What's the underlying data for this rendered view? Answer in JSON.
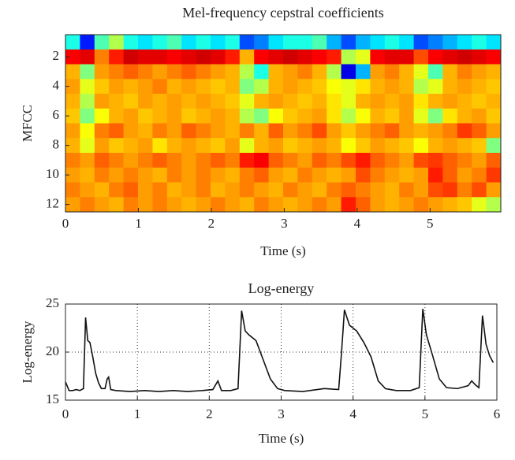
{
  "chart_data": [
    {
      "type": "heatmap",
      "title": "Mel-frequency cepstral coefficients",
      "x_label": "Time (s)",
      "y_label": "MFCC",
      "colormap": "jet",
      "xlim": [
        0,
        5.97
      ],
      "ylim": [
        0.5,
        12.5
      ],
      "xticks": [
        0,
        1,
        2,
        3,
        4,
        5
      ],
      "yticks": [
        2,
        4,
        6,
        8,
        10,
        12
      ],
      "z": [
        [
          0.4,
          0.15,
          0.45,
          0.55,
          0.4,
          0.35,
          0.4,
          0.45,
          0.35,
          0.4,
          0.35,
          0.4,
          0.2,
          0.25,
          0.35,
          0.4,
          0.4,
          0.45,
          0.3,
          0.2,
          0.3,
          0.35,
          0.4,
          0.35,
          0.2,
          0.25,
          0.3,
          0.35,
          0.4,
          0.35
        ],
        [
          0.88,
          0.9,
          0.75,
          0.85,
          0.92,
          0.9,
          0.9,
          0.88,
          0.9,
          0.92,
          0.9,
          0.85,
          0.7,
          0.88,
          0.9,
          0.92,
          0.9,
          0.88,
          0.85,
          0.55,
          0.6,
          0.88,
          0.9,
          0.9,
          0.8,
          0.88,
          0.9,
          0.92,
          0.9,
          0.88
        ],
        [
          0.7,
          0.5,
          0.72,
          0.75,
          0.78,
          0.75,
          0.72,
          0.75,
          0.78,
          0.75,
          0.72,
          0.7,
          0.55,
          0.4,
          0.7,
          0.72,
          0.75,
          0.7,
          0.55,
          0.1,
          0.3,
          0.72,
          0.75,
          0.7,
          0.6,
          0.45,
          0.7,
          0.75,
          0.72,
          0.7
        ],
        [
          0.72,
          0.6,
          0.68,
          0.72,
          0.7,
          0.72,
          0.75,
          0.7,
          0.72,
          0.7,
          0.68,
          0.7,
          0.5,
          0.55,
          0.7,
          0.72,
          0.7,
          0.68,
          0.62,
          0.6,
          0.65,
          0.7,
          0.72,
          0.7,
          0.55,
          0.6,
          0.7,
          0.72,
          0.7,
          0.68
        ],
        [
          0.7,
          0.55,
          0.72,
          0.7,
          0.68,
          0.72,
          0.7,
          0.72,
          0.7,
          0.72,
          0.7,
          0.68,
          0.6,
          0.7,
          0.72,
          0.7,
          0.68,
          0.7,
          0.65,
          0.6,
          0.7,
          0.72,
          0.7,
          0.72,
          0.65,
          0.7,
          0.72,
          0.7,
          0.68,
          0.7
        ],
        [
          0.68,
          0.5,
          0.62,
          0.7,
          0.72,
          0.68,
          0.7,
          0.72,
          0.68,
          0.7,
          0.72,
          0.7,
          0.55,
          0.5,
          0.62,
          0.68,
          0.7,
          0.72,
          0.65,
          0.55,
          0.62,
          0.7,
          0.68,
          0.72,
          0.6,
          0.5,
          0.65,
          0.7,
          0.72,
          0.68
        ],
        [
          0.72,
          0.62,
          0.75,
          0.78,
          0.72,
          0.7,
          0.75,
          0.72,
          0.78,
          0.75,
          0.72,
          0.7,
          0.75,
          0.7,
          0.78,
          0.72,
          0.75,
          0.8,
          0.72,
          0.68,
          0.72,
          0.75,
          0.78,
          0.72,
          0.7,
          0.72,
          0.75,
          0.82,
          0.78,
          0.72
        ],
        [
          0.7,
          0.6,
          0.72,
          0.68,
          0.7,
          0.72,
          0.65,
          0.7,
          0.72,
          0.7,
          0.68,
          0.72,
          0.6,
          0.7,
          0.72,
          0.68,
          0.7,
          0.72,
          0.7,
          0.62,
          0.68,
          0.72,
          0.7,
          0.68,
          0.62,
          0.7,
          0.72,
          0.7,
          0.68,
          0.5
        ],
        [
          0.75,
          0.72,
          0.78,
          0.75,
          0.72,
          0.75,
          0.78,
          0.75,
          0.72,
          0.75,
          0.78,
          0.75,
          0.85,
          0.88,
          0.78,
          0.75,
          0.72,
          0.78,
          0.75,
          0.8,
          0.85,
          0.78,
          0.75,
          0.72,
          0.8,
          0.82,
          0.78,
          0.75,
          0.72,
          0.78
        ],
        [
          0.72,
          0.7,
          0.75,
          0.72,
          0.75,
          0.72,
          0.7,
          0.75,
          0.72,
          0.75,
          0.72,
          0.7,
          0.75,
          0.78,
          0.72,
          0.7,
          0.75,
          0.72,
          0.7,
          0.72,
          0.8,
          0.75,
          0.72,
          0.7,
          0.72,
          0.85,
          0.78,
          0.72,
          0.75,
          0.82
        ],
        [
          0.75,
          0.72,
          0.7,
          0.75,
          0.78,
          0.72,
          0.75,
          0.7,
          0.72,
          0.75,
          0.7,
          0.72,
          0.75,
          0.72,
          0.7,
          0.75,
          0.72,
          0.7,
          0.75,
          0.78,
          0.75,
          0.72,
          0.7,
          0.75,
          0.72,
          0.8,
          0.82,
          0.75,
          0.8,
          0.72
        ],
        [
          0.72,
          0.75,
          0.72,
          0.7,
          0.75,
          0.72,
          0.75,
          0.72,
          0.7,
          0.72,
          0.75,
          0.72,
          0.7,
          0.75,
          0.72,
          0.7,
          0.72,
          0.75,
          0.72,
          0.85,
          0.78,
          0.72,
          0.7,
          0.72,
          0.75,
          0.72,
          0.7,
          0.68,
          0.6,
          0.55
        ]
      ]
    },
    {
      "type": "line",
      "title": "Log-energy",
      "x_label": "Time (s)",
      "y_label": "Log-energy",
      "xlim": [
        0,
        6
      ],
      "ylim": [
        15,
        25
      ],
      "xticks": [
        0,
        1,
        2,
        3,
        4,
        5,
        6
      ],
      "yticks": [
        15,
        20,
        25
      ],
      "grid": true,
      "color": "#111111",
      "x": [
        0,
        0.05,
        0.1,
        0.15,
        0.2,
        0.25,
        0.28,
        0.31,
        0.34,
        0.38,
        0.42,
        0.46,
        0.5,
        0.55,
        0.58,
        0.6,
        0.63,
        0.7,
        0.9,
        1.1,
        1.3,
        1.5,
        1.7,
        1.9,
        2.05,
        2.12,
        2.17,
        2.3,
        2.4,
        2.45,
        2.5,
        2.55,
        2.65,
        2.75,
        2.85,
        2.95,
        3.05,
        3.3,
        3.6,
        3.8,
        3.84,
        3.88,
        3.95,
        4.05,
        4.15,
        4.25,
        4.35,
        4.45,
        4.6,
        4.8,
        4.92,
        4.97,
        5.02,
        5.1,
        5.2,
        5.3,
        5.45,
        5.6,
        5.65,
        5.7,
        5.75,
        5.8,
        5.85,
        5.9,
        5.95
      ],
      "values": [
        16.9,
        16,
        16,
        16.1,
        16,
        16.2,
        23.6,
        21.2,
        21,
        19.5,
        17.8,
        16.8,
        16.2,
        16.2,
        17.2,
        17.4,
        16.1,
        16,
        15.9,
        16,
        15.9,
        16,
        15.9,
        16,
        16.1,
        17,
        16,
        16,
        16.2,
        24.3,
        22.2,
        21.8,
        21.2,
        19.2,
        17.2,
        16.2,
        16,
        15.9,
        16.2,
        16.1,
        20,
        24.4,
        22.8,
        22.2,
        21,
        19.5,
        17,
        16.2,
        16,
        16,
        16.3,
        24.5,
        21.8,
        19.8,
        17.2,
        16.3,
        16.2,
        16.5,
        17,
        16.6,
        16.3,
        23.8,
        20.8,
        19.6,
        18.9
      ]
    }
  ]
}
